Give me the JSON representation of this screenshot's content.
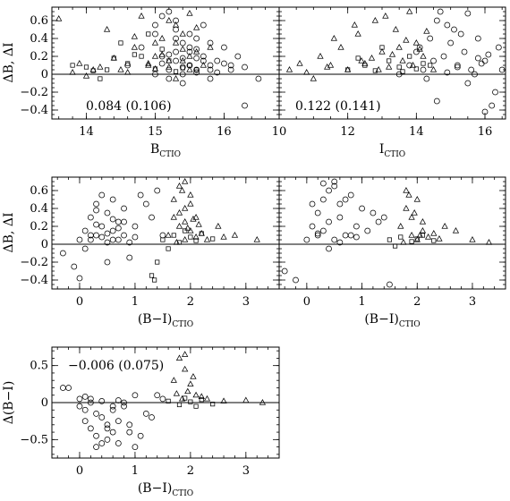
{
  "chart_data": [
    {
      "type": "scatter",
      "id": "p1",
      "xlabel": "B",
      "xlabel_sub": "CTIO",
      "ylabel": "ΔB, ΔI",
      "xlim": [
        13.5,
        16.8
      ],
      "ylim": [
        -0.5,
        0.75
      ],
      "xticks": [
        14,
        15,
        16
      ],
      "yticks": [
        -0.4,
        -0.2,
        0,
        0.2,
        0.4,
        0.6
      ],
      "annotation": "0.084 (0.106)",
      "zero_line": true,
      "series": [
        {
          "marker": "triangle",
          "x": [
            13.6,
            13.8,
            14.2,
            14.3,
            14.5,
            14.7,
            14.8,
            14.9,
            15.0,
            15.1,
            15.2,
            15.3,
            15.4,
            15.5,
            15.6,
            15.7,
            14.1,
            14.4,
            14.6,
            15.0,
            15.2,
            15.4,
            15.5,
            15.3,
            14.9,
            15.1,
            15.6,
            13.9,
            14.0,
            15.8,
            15.2,
            15.4,
            14.7,
            15.0,
            15.3,
            15.5
          ],
          "y": [
            0.62,
            0.02,
            0.08,
            0.5,
            0.05,
            0.3,
            0.65,
            0.12,
            0.2,
            0.4,
            0.08,
            0.55,
            0.15,
            0.68,
            0.25,
            0.1,
            0.05,
            0.18,
            0.02,
            0.35,
            0.6,
            0.45,
            0.05,
            -0.05,
            0.1,
            0.22,
            0.52,
            0.12,
            -0.02,
            0.3,
            0.15,
            0.28,
            0.42,
            0.06,
            0.35,
            0.2
          ]
        },
        {
          "marker": "square",
          "x": [
            13.8,
            14.0,
            14.3,
            14.5,
            14.6,
            14.8,
            15.0,
            15.2,
            15.3,
            15.5,
            14.2,
            14.9,
            15.1,
            15.4,
            14.4,
            14.7,
            15.6,
            14.1
          ],
          "y": [
            0.1,
            0.08,
            0.05,
            0.35,
            0.12,
            0.2,
            0.06,
            0.15,
            0.03,
            0.1,
            -0.05,
            0.45,
            0.28,
            0.07,
            0.18,
            0.22,
            0.05,
            0.04
          ]
        },
        {
          "marker": "circle",
          "x": [
            14.6,
            14.8,
            15.0,
            15.1,
            15.2,
            15.3,
            15.3,
            15.4,
            15.4,
            15.5,
            15.5,
            15.6,
            15.6,
            15.7,
            15.7,
            15.8,
            15.8,
            15.9,
            16.0,
            16.1,
            16.2,
            16.3,
            15.0,
            15.1,
            15.2,
            15.3,
            15.4,
            15.5,
            15.6,
            15.2,
            15.4,
            15.6,
            15.8,
            16.0,
            16.3,
            16.5,
            15.1,
            15.3,
            15.5,
            15.7,
            15.9,
            16.1,
            15.2,
            15.4,
            15.6,
            15.8,
            15.0,
            15.3
          ],
          "y": [
            0.1,
            0.3,
            0.45,
            0.2,
            0.05,
            0.6,
            0.15,
            0.35,
            0.0,
            0.25,
            0.1,
            0.4,
            0.05,
            0.2,
            0.55,
            0.1,
            -0.05,
            0.15,
            0.3,
            0.05,
            0.2,
            0.08,
            0.0,
            0.12,
            0.7,
            0.25,
            -0.1,
            0.45,
            0.18,
            -0.05,
            0.08,
            0.02,
            0.35,
            0.12,
            -0.35,
            -0.05,
            0.65,
            0.5,
            0.3,
            0.15,
            0.02,
            0.1,
            0.22,
            0.18,
            0.28,
            0.05,
            0.55,
            0.4
          ]
        }
      ]
    },
    {
      "type": "scatter",
      "id": "p2",
      "xlabel": "I",
      "xlabel_sub": "CTIO",
      "ylabel": "",
      "xlim": [
        10,
        16.6
      ],
      "ylim": [
        -0.5,
        0.75
      ],
      "xticks": [
        10,
        12,
        14,
        16
      ],
      "yticks": [
        -0.4,
        -0.2,
        0,
        0.2,
        0.4,
        0.6
      ],
      "annotation": "0.122 (0.141)",
      "zero_line": true,
      "series": [
        {
          "marker": "triangle",
          "x": [
            10.3,
            10.8,
            11.2,
            11.5,
            11.8,
            12.0,
            12.3,
            12.5,
            12.8,
            13.0,
            13.2,
            13.4,
            13.6,
            13.8,
            14.0,
            14.2,
            11.0,
            11.6,
            12.2,
            12.7,
            13.1,
            13.5,
            13.9,
            14.3,
            14.5,
            12.9,
            13.3,
            13.7,
            11.4,
            12.4,
            14.1,
            10.6
          ],
          "y": [
            0.05,
            0.02,
            0.2,
            0.1,
            0.3,
            0.05,
            0.45,
            0.12,
            0.6,
            0.25,
            0.08,
            0.5,
            0.15,
            0.7,
            0.35,
            0.2,
            -0.05,
            0.4,
            0.55,
            0.18,
            0.65,
            0.3,
            0.1,
            0.48,
            0.05,
            0.05,
            0.22,
            0.38,
            0.08,
            0.15,
            0.28,
            0.12
          ]
        },
        {
          "marker": "square",
          "x": [
            12.0,
            12.5,
            12.8,
            13.2,
            13.5,
            13.8,
            14.0,
            14.2,
            13.0,
            13.6,
            14.4,
            12.3
          ],
          "y": [
            0.05,
            0.1,
            0.04,
            0.15,
            0.08,
            0.2,
            0.06,
            0.12,
            0.3,
            0.03,
            0.1,
            0.18
          ]
        },
        {
          "marker": "circle",
          "x": [
            13.5,
            13.8,
            14.0,
            14.2,
            14.4,
            14.5,
            14.6,
            14.8,
            14.9,
            15.0,
            15.1,
            15.2,
            15.4,
            15.5,
            15.6,
            15.8,
            16.0,
            16.2,
            16.4,
            14.3,
            14.7,
            15.3,
            15.7,
            16.1,
            16.3,
            14.1,
            14.9,
            15.5,
            15.9,
            16.5,
            14.6,
            15.2,
            15.8,
            16.0
          ],
          "y": [
            0.0,
            0.1,
            0.25,
            0.05,
            0.4,
            0.15,
            0.6,
            0.2,
            0.02,
            0.35,
            0.5,
            0.1,
            0.25,
            0.68,
            0.05,
            0.4,
            0.15,
            -0.35,
            0.3,
            -0.05,
            0.7,
            0.45,
            0.0,
            0.22,
            -0.2,
            0.3,
            0.55,
            -0.1,
            0.12,
            0.05,
            -0.3,
            0.08,
            0.18,
            -0.42
          ]
        }
      ]
    },
    {
      "type": "scatter",
      "id": "p3",
      "xlabel": "(B−I)",
      "xlabel_sub": "CTIO",
      "ylabel": "ΔB, ΔI",
      "xlim": [
        -0.5,
        3.6
      ],
      "ylim": [
        -0.5,
        0.75
      ],
      "xticks": [
        0,
        1,
        2,
        3
      ],
      "yticks": [
        -0.4,
        -0.2,
        0,
        0.2,
        0.4,
        0.6
      ],
      "annotation": "",
      "zero_line": true,
      "series": [
        {
          "marker": "circle",
          "x": [
            -0.3,
            -0.1,
            0.0,
            0.1,
            0.2,
            0.2,
            0.3,
            0.3,
            0.4,
            0.4,
            0.5,
            0.5,
            0.6,
            0.6,
            0.7,
            0.7,
            0.8,
            0.8,
            0.9,
            1.0,
            1.1,
            1.2,
            1.3,
            0.1,
            0.2,
            0.3,
            0.4,
            0.5,
            0.6,
            0.7,
            0.0,
            0.5,
            0.9,
            1.4,
            1.5,
            0.3,
            0.6,
            0.8,
            1.0
          ],
          "y": [
            -0.1,
            -0.25,
            0.05,
            0.15,
            0.3,
            0.05,
            0.45,
            0.1,
            0.55,
            0.2,
            0.02,
            0.35,
            0.15,
            0.5,
            0.25,
            0.05,
            0.4,
            0.1,
            -0.15,
            0.2,
            0.55,
            0.45,
            0.3,
            -0.05,
            0.1,
            0.22,
            0.08,
            0.12,
            0.28,
            0.18,
            -0.38,
            -0.2,
            0.02,
            0.6,
            0.1,
            0.38,
            0.05,
            0.25,
            0.08
          ]
        },
        {
          "marker": "triangle",
          "x": [
            1.6,
            1.7,
            1.7,
            1.8,
            1.8,
            1.9,
            1.9,
            1.9,
            2.0,
            2.0,
            2.1,
            2.1,
            2.2,
            2.3,
            2.5,
            2.8,
            3.2,
            1.8,
            1.9,
            2.0,
            1.85,
            1.95,
            2.05,
            1.75,
            2.15,
            2.6
          ],
          "y": [
            0.1,
            0.3,
            0.5,
            0.2,
            0.65,
            0.05,
            0.4,
            0.7,
            0.15,
            0.55,
            0.08,
            0.3,
            0.12,
            0.05,
            0.2,
            0.1,
            0.05,
            0.35,
            0.25,
            0.45,
            0.6,
            0.18,
            0.28,
            0.02,
            0.22,
            0.08
          ]
        },
        {
          "marker": "square",
          "x": [
            1.3,
            1.4,
            1.5,
            1.7,
            1.8,
            2.0,
            2.2,
            1.6,
            1.9,
            2.1,
            1.35,
            2.4
          ],
          "y": [
            -0.35,
            -0.2,
            0.05,
            0.1,
            0.02,
            0.08,
            0.12,
            -0.05,
            0.15,
            0.04,
            -0.4,
            0.06
          ]
        }
      ]
    },
    {
      "type": "scatter",
      "id": "p4",
      "xlabel": "(B−I)",
      "xlabel_sub": "CTIO",
      "ylabel": "",
      "xlim": [
        -0.5,
        3.6
      ],
      "ylim": [
        -0.5,
        0.75
      ],
      "xticks": [
        0,
        1,
        2,
        3
      ],
      "yticks": [
        -0.4,
        -0.2,
        0,
        0.2,
        0.4,
        0.6
      ],
      "annotation": "",
      "zero_line": true,
      "series": [
        {
          "marker": "circle",
          "x": [
            -0.4,
            -0.2,
            0.0,
            0.1,
            0.2,
            0.2,
            0.3,
            0.3,
            0.4,
            0.4,
            0.5,
            0.5,
            0.6,
            0.6,
            0.7,
            0.8,
            0.9,
            1.0,
            1.1,
            1.2,
            1.3,
            0.1,
            0.3,
            0.5,
            0.7,
            0.4,
            0.6,
            0.8,
            1.5,
            1.4,
            0.2,
            0.9
          ],
          "y": [
            -0.3,
            -0.4,
            0.05,
            0.2,
            0.35,
            0.1,
            0.5,
            0.15,
            0.6,
            0.25,
            0.05,
            0.65,
            0.3,
            0.45,
            0.1,
            0.55,
            0.2,
            0.4,
            0.15,
            0.35,
            0.25,
            0.45,
            0.68,
            0.7,
            0.5,
            -0.05,
            0.02,
            0.1,
            -0.45,
            0.3,
            0.12,
            0.08
          ]
        },
        {
          "marker": "triangle",
          "x": [
            1.7,
            1.8,
            1.8,
            1.9,
            1.9,
            2.0,
            2.0,
            2.1,
            2.1,
            2.2,
            2.3,
            2.5,
            2.7,
            3.0,
            3.3,
            1.85,
            1.95,
            2.05,
            2.4,
            1.75
          ],
          "y": [
            0.2,
            0.4,
            0.6,
            0.1,
            0.3,
            0.5,
            0.05,
            0.25,
            0.15,
            0.08,
            0.12,
            0.2,
            0.15,
            0.05,
            0.02,
            0.55,
            0.35,
            0.1,
            0.06,
            0.02
          ]
        },
        {
          "marker": "square",
          "x": [
            1.5,
            1.7,
            1.9,
            2.1,
            2.3,
            1.6,
            2.0
          ],
          "y": [
            0.05,
            0.08,
            0.03,
            0.1,
            0.04,
            -0.02,
            0.06
          ]
        }
      ]
    },
    {
      "type": "scatter",
      "id": "p5",
      "xlabel": "(B−I)",
      "xlabel_sub": "CTIO",
      "ylabel": "Δ(B−I)",
      "xlim": [
        -0.5,
        3.6
      ],
      "ylim": [
        -0.75,
        0.75
      ],
      "xticks": [
        0,
        1,
        2,
        3
      ],
      "yticks": [
        -0.5,
        0,
        0.5
      ],
      "annotation": "−0.006 (0.075)",
      "zero_line": true,
      "series": [
        {
          "marker": "circle",
          "x": [
            -0.3,
            -0.2,
            0.0,
            0.1,
            0.1,
            0.2,
            0.2,
            0.3,
            0.3,
            0.4,
            0.4,
            0.5,
            0.5,
            0.6,
            0.6,
            0.7,
            0.7,
            0.8,
            0.9,
            1.0,
            1.1,
            1.2,
            1.3,
            0.2,
            0.4,
            0.6,
            0.8,
            0.3,
            0.5,
            0.7,
            1.4,
            1.5,
            0.0,
            0.1,
            0.9,
            1.0
          ],
          "y": [
            0.2,
            0.2,
            0.05,
            -0.1,
            -0.25,
            0.0,
            -0.35,
            -0.15,
            -0.45,
            -0.2,
            -0.55,
            -0.3,
            -0.5,
            -0.4,
            -0.1,
            -0.55,
            -0.25,
            -0.05,
            -0.3,
            -0.6,
            -0.45,
            -0.15,
            -0.2,
            0.05,
            0.02,
            -0.05,
            0.0,
            -0.6,
            -0.35,
            0.03,
            0.1,
            0.05,
            -0.05,
            0.08,
            -0.4,
            0.1
          ]
        },
        {
          "marker": "triangle",
          "x": [
            1.7,
            1.8,
            1.9,
            2.0,
            2.1,
            1.85,
            1.95,
            2.05,
            2.3,
            2.6,
            3.0,
            1.75,
            2.2,
            3.3,
            1.9
          ],
          "y": [
            0.3,
            0.6,
            0.45,
            0.25,
            0.1,
            0.05,
            0.15,
            0.35,
            0.05,
            0.02,
            0.03,
            0.12,
            0.08,
            0.0,
            0.65
          ]
        },
        {
          "marker": "square",
          "x": [
            1.6,
            1.8,
            2.0,
            2.2,
            2.4,
            1.9,
            2.1
          ],
          "y": [
            0.02,
            -0.03,
            0.01,
            0.04,
            -0.02,
            0.06,
            -0.05
          ]
        }
      ]
    }
  ]
}
